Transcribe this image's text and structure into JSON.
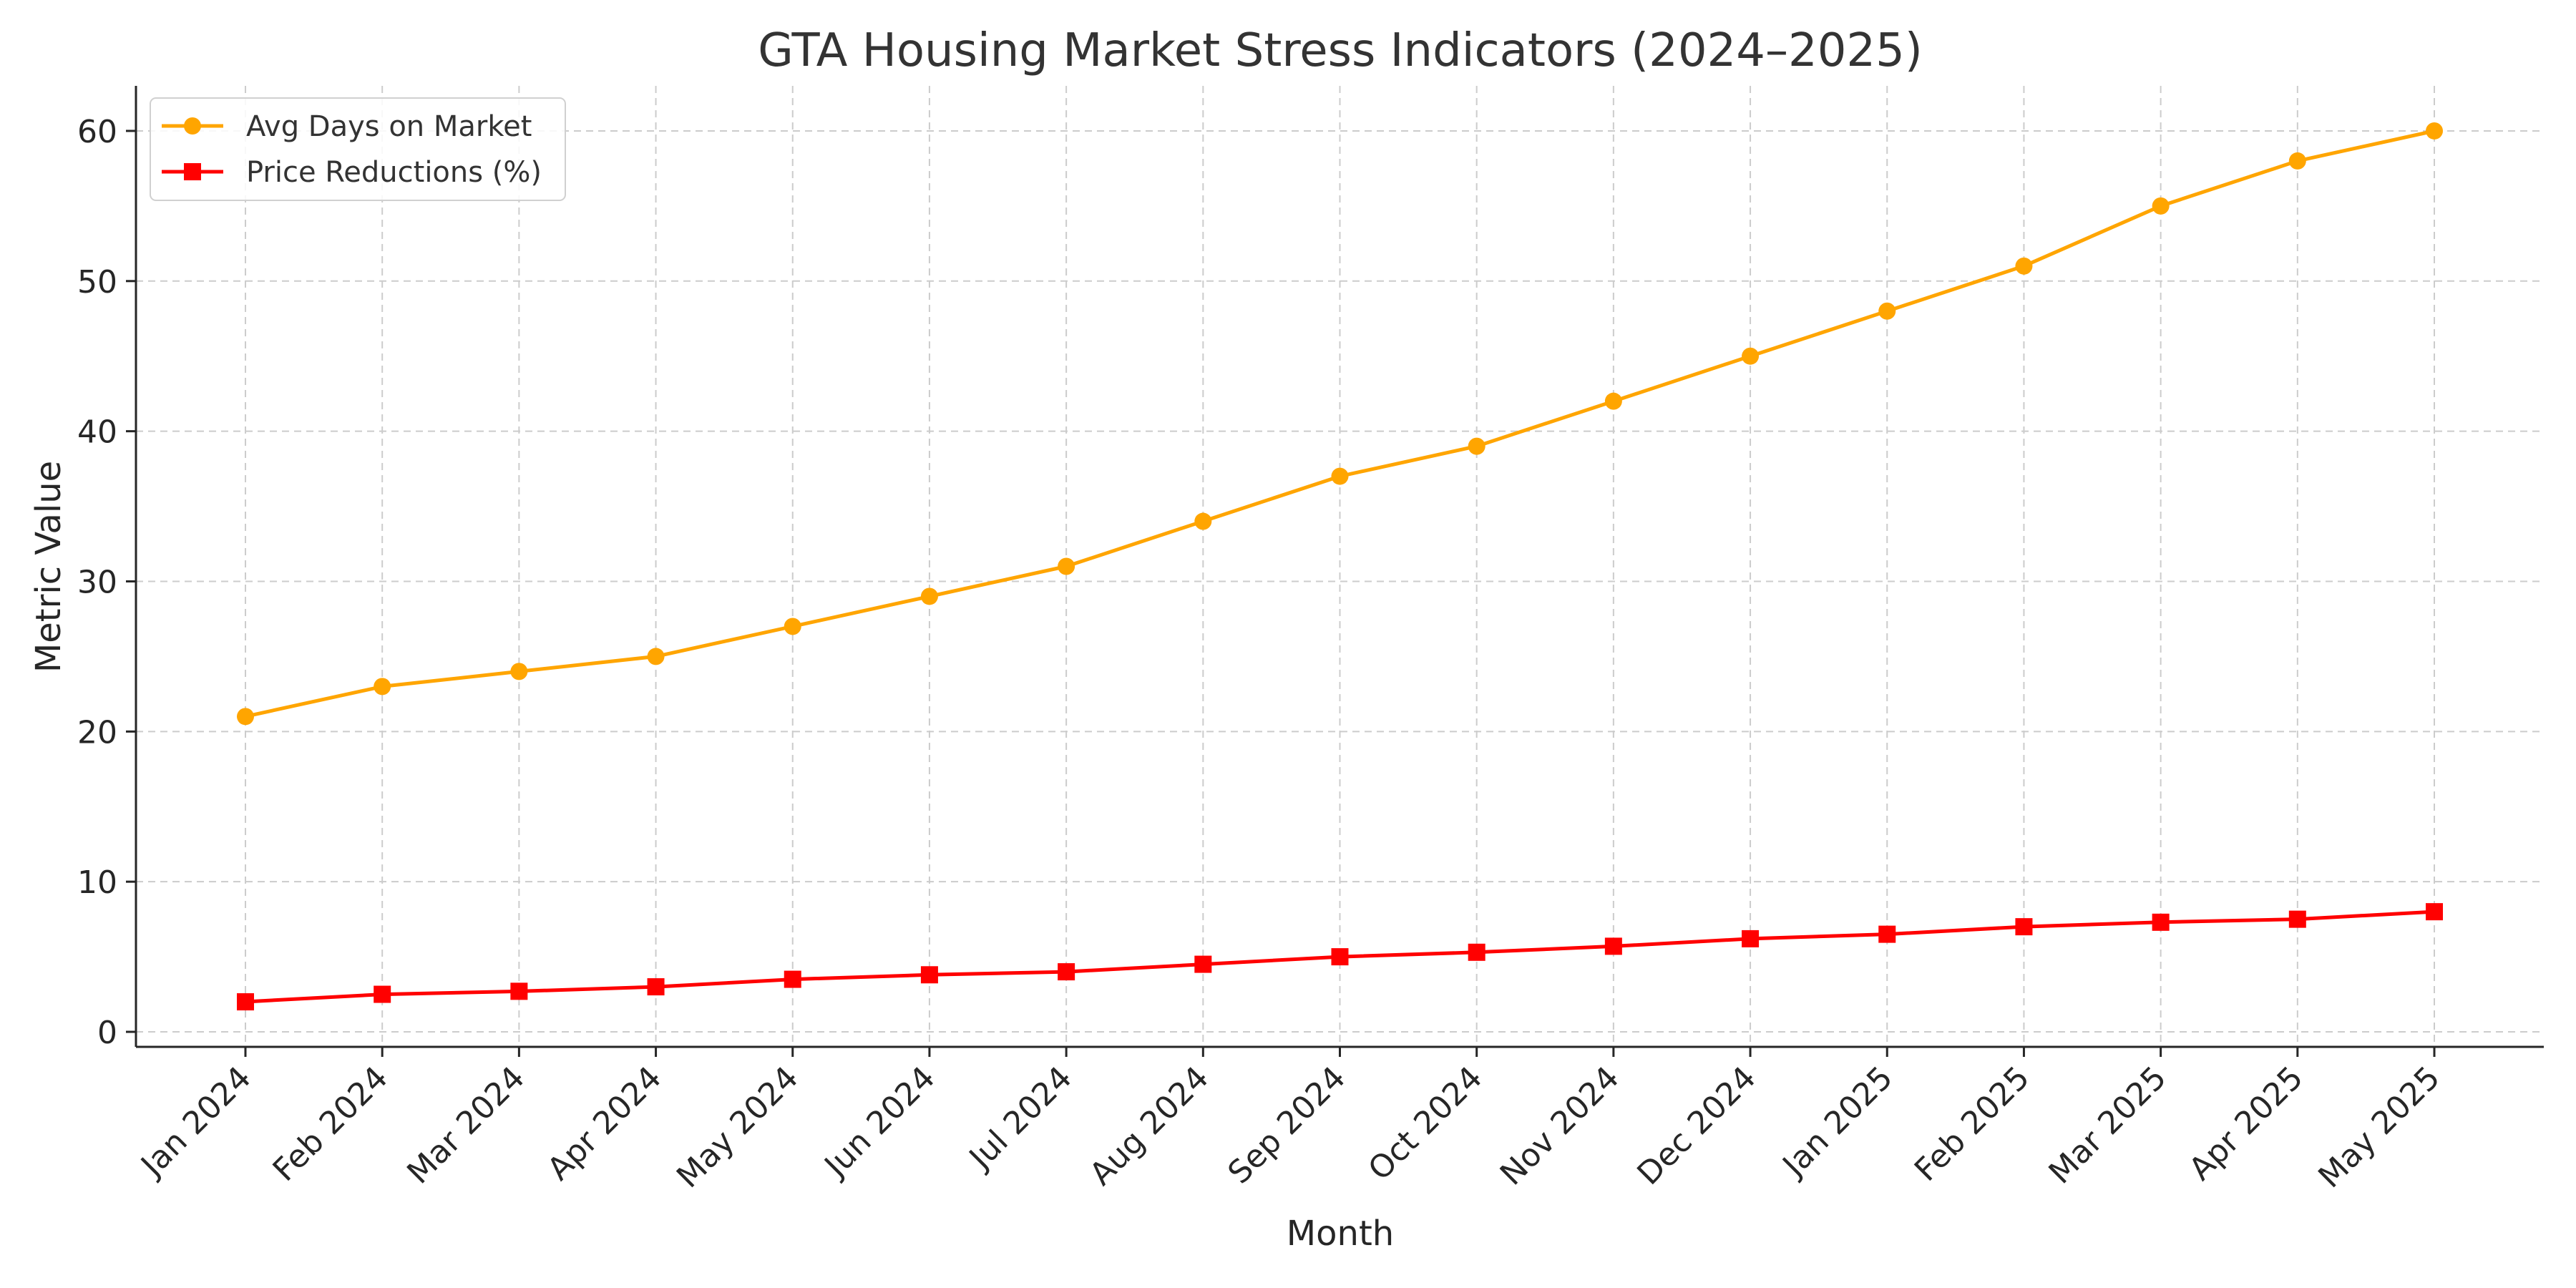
{
  "chart_data": {
    "type": "line",
    "title": "GTA Housing Market Stress Indicators (2024–2025)",
    "xlabel": "Month",
    "ylabel": "Metric Value",
    "categories": [
      "Jan 2024",
      "Feb 2024",
      "Mar 2024",
      "Apr 2024",
      "May 2024",
      "Jun 2024",
      "Jul 2024",
      "Aug 2024",
      "Sep 2024",
      "Oct 2024",
      "Nov 2024",
      "Dec 2024",
      "Jan 2025",
      "Feb 2025",
      "Mar 2025",
      "Apr 2025",
      "May 2025"
    ],
    "ylim": [
      -1,
      63
    ],
    "yticks": [
      0,
      10,
      20,
      30,
      40,
      50,
      60
    ],
    "grid": true,
    "legend_position": "top-left",
    "series": [
      {
        "name": "Avg Days on Market",
        "color": "#FFA500",
        "marker": "circle",
        "values": [
          21,
          23,
          24,
          25,
          27,
          29,
          31,
          34,
          37,
          39,
          42,
          45,
          48,
          51,
          55,
          58,
          60
        ]
      },
      {
        "name": "Price Reductions (%)",
        "color": "#FF0000",
        "marker": "square",
        "values": [
          2.0,
          2.5,
          2.7,
          3.0,
          3.5,
          3.8,
          4.0,
          4.5,
          5.0,
          5.3,
          5.7,
          6.2,
          6.5,
          7.0,
          7.3,
          7.5,
          8.0
        ]
      }
    ]
  }
}
